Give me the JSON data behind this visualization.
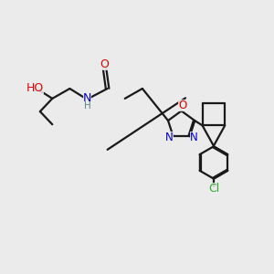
{
  "bg_color": "#ebebeb",
  "atom_colors": {
    "C": "#000000",
    "N": "#0000cc",
    "O": "#dd0000",
    "Cl": "#33aa33",
    "H": "#558888"
  },
  "bond_color": "#1a1a1a",
  "bond_width": 1.6,
  "dbo": 0.035
}
